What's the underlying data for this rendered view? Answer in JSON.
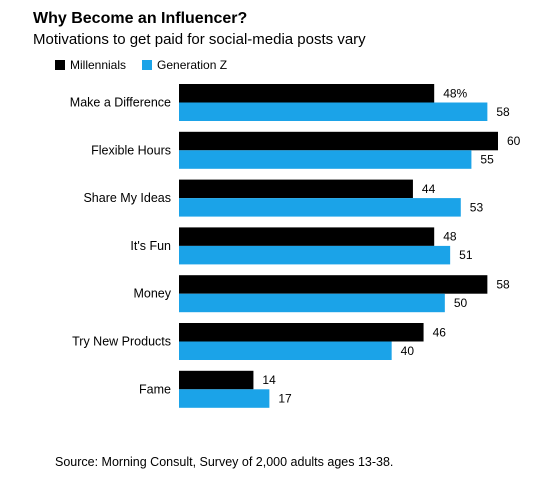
{
  "header": {
    "title": "Why Become an Influencer?",
    "subtitle": "Motivations to get paid for social-media posts vary"
  },
  "legend": {
    "items": [
      {
        "label": "Millennials",
        "color": "#000000"
      },
      {
        "label": "Generation Z",
        "color": "#1ba3e8"
      }
    ]
  },
  "footer": {
    "source": "Source: Morning Consult, Survey of 2,000 adults ages 13-38."
  },
  "chart_data": {
    "type": "bar",
    "orientation": "horizontal",
    "categories": [
      "Make a Difference",
      "Flexible Hours",
      "Share My Ideas",
      "It's Fun",
      "Money",
      "Try New Products",
      "Fame"
    ],
    "series": [
      {
        "name": "Millennials",
        "color": "#000000",
        "values": [
          48,
          60,
          44,
          48,
          58,
          46,
          14
        ],
        "labels": [
          "48%",
          "60",
          "44",
          "48",
          "58",
          "46",
          "14"
        ]
      },
      {
        "name": "Generation Z",
        "color": "#1ba3e8",
        "values": [
          58,
          55,
          53,
          51,
          50,
          40,
          17
        ],
        "labels": [
          "58",
          "55",
          "53",
          "51",
          "50",
          "40",
          "17"
        ]
      }
    ],
    "xlim": [
      0,
      60
    ],
    "grid": false,
    "legend_position": "top-left"
  }
}
